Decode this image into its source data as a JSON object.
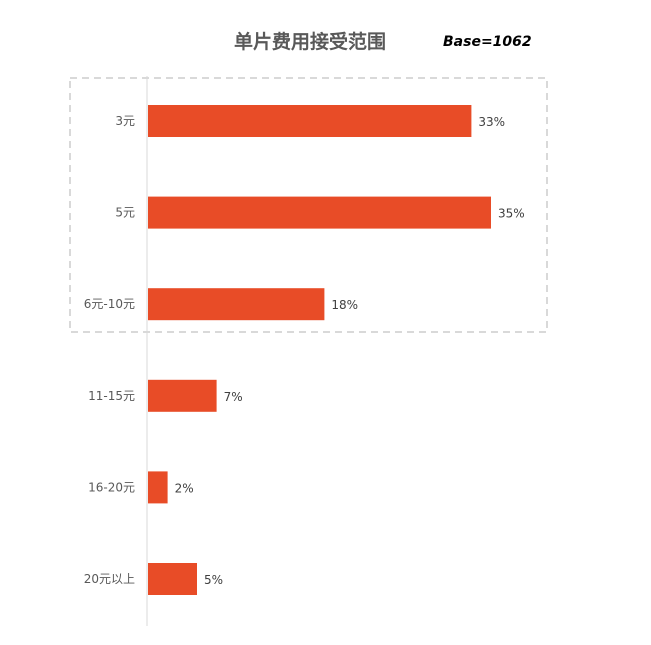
{
  "chart_data": {
    "type": "bar",
    "orientation": "horizontal",
    "title": "单片费用接受范围",
    "base_label": "Base",
    "base_value": "=1062",
    "categories": [
      "3元",
      "5元",
      "6元-10元",
      "11-15元",
      "16-20元",
      "20元以上"
    ],
    "values": [
      33,
      35,
      18,
      7,
      2,
      5
    ],
    "value_labels": [
      "33%",
      "35%",
      "18%",
      "7%",
      "2%",
      "5%"
    ],
    "xlabel": "",
    "ylabel": "",
    "xlim": [
      0,
      35
    ],
    "grid": false,
    "legend": "none",
    "highlight_group": [
      0,
      1,
      2
    ],
    "bar_color": "#E84C27",
    "axis_color": "#D9D9D9",
    "highlight_border_color": "#D9D9D9"
  }
}
